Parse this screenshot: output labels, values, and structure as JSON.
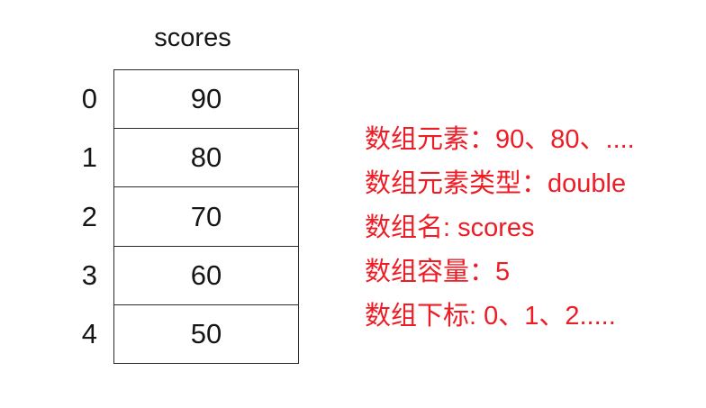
{
  "diagram": {
    "title": "scores",
    "array": {
      "rows": [
        {
          "index": "0",
          "value": "90"
        },
        {
          "index": "1",
          "value": "80"
        },
        {
          "index": "2",
          "value": "70"
        },
        {
          "index": "3",
          "value": "60"
        },
        {
          "index": "4",
          "value": "50"
        }
      ]
    },
    "annotations": {
      "lines": [
        {
          "text": "数组元素：90、80、...."
        },
        {
          "text": "数组元素类型：double"
        },
        {
          "text": "数组名: scores"
        },
        {
          "text": "数组容量：5"
        },
        {
          "text": "数组下标: 0、1、2....."
        }
      ]
    },
    "colors": {
      "annotation_red": "#ee1c25",
      "text_ink": "#161616",
      "border_line": "#2b2b2b",
      "background": "#ffffff"
    }
  }
}
